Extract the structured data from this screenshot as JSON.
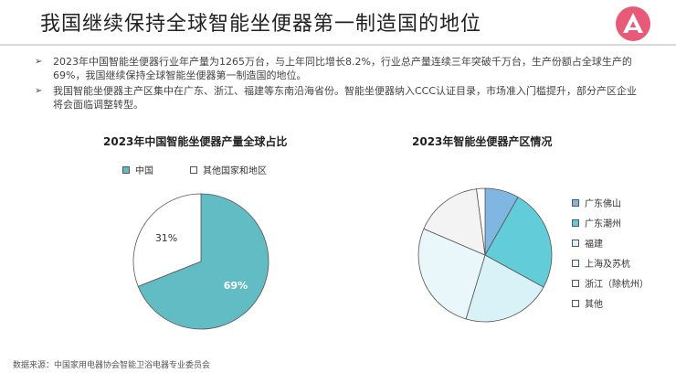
{
  "page": {
    "title": "我国继续保持全球智能坐便器第一制造国的地位",
    "bullets": [
      "2023年中国智能坐便器行业年产量为1265万台，与上年同比增长8.2%，行业总产量连续三年突破千万台，生产份额占全球生产的69%，我国继续保持全球智能坐便器第一制造国的地位。",
      "我国智能坐便器主产区集中在广东、浙江、福建等东南沿海省份。智能坐便器纳入CCC认证目录，市场准入门槛提升，部分产区企业将会面临调整转型。"
    ],
    "bullet_mark": "➢",
    "source": "数据来源：中国家用电器协会智能卫浴电器专业委员会"
  },
  "chart_data": [
    {
      "type": "pie",
      "title": "2023年中国智能坐便器产量全球占比",
      "labels": [
        "中国",
        "其他国家和地区"
      ],
      "values": [
        69,
        31
      ],
      "value_labels": [
        "69%",
        "31%"
      ],
      "colors": [
        "#62bcc3",
        "#ffffff"
      ],
      "legend_position": "top"
    },
    {
      "type": "pie",
      "title": "2023年智能坐便器产区情况",
      "labels": [
        "广东佛山",
        "广东潮州",
        "福建",
        "上海及苏杭",
        "浙江（除杭州）",
        "其他"
      ],
      "values": [
        8,
        24,
        21,
        26,
        16,
        2
      ],
      "colors": [
        "#7fb6e2",
        "#62ccd8",
        "#d9f2f8",
        "#e9f7fb",
        "#f3f3f3",
        "#ffffff"
      ],
      "legend_position": "right"
    }
  ]
}
